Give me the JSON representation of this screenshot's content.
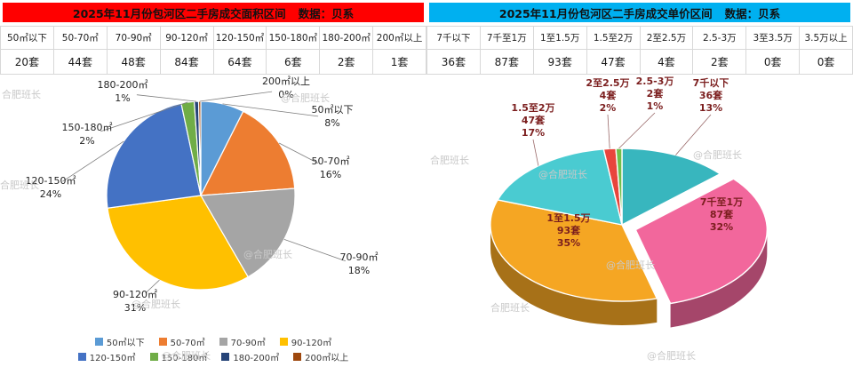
{
  "watermark": {
    "plain": "合肥班长",
    "at": "@合肥班长"
  },
  "panels": {
    "left": {
      "title": "2025年11月份包河区二手房成交面积区间",
      "source": "数据：贝系",
      "header_color": "#FF0000"
    },
    "right": {
      "title": "2025年11月份包河区二手房成交单价区间",
      "source": "数据：贝系",
      "header_color": "#00B0F0"
    }
  },
  "chart_data": [
    {
      "type": "pie",
      "title": "2025年11月份包河区二手房成交面积区间",
      "categories": [
        "50㎡以下",
        "50-70㎡",
        "70-90㎡",
        "90-120㎡",
        "120-150㎡",
        "150-180㎡",
        "180-200㎡",
        "200㎡以上"
      ],
      "values": [
        20,
        44,
        48,
        84,
        64,
        6,
        2,
        1
      ],
      "unit": "套",
      "percent_labels": [
        "8%",
        "16%",
        "18%",
        "31%",
        "24%",
        "2%",
        "1%",
        "0%"
      ],
      "colors": [
        "#5B9BD5",
        "#ED7D31",
        "#A5A5A5",
        "#FFC000",
        "#4472C4",
        "#70AD47",
        "#264478",
        "#9E480E"
      ],
      "legend_position": "bottom"
    },
    {
      "type": "pie",
      "style": "3d",
      "title": "2025年11月份包河区二手房成交单价区间",
      "categories": [
        "7千以下",
        "7千至1万",
        "1至1.5万",
        "1.5至2万",
        "2至2.5万",
        "2.5-3万",
        "3至3.5万",
        "3.5万以上"
      ],
      "values": [
        36,
        87,
        93,
        47,
        4,
        2,
        0,
        0
      ],
      "unit": "套",
      "percent_labels": [
        "13%",
        "32%",
        "35%",
        "17%",
        "2%",
        "1%",
        "",
        ""
      ],
      "colors": [
        "#38B6BE",
        "#F2679C",
        "#F5A623",
        "#4ACBD1",
        "#E8453C",
        "#6FBF4A",
        "#BBBBBB",
        "#BBBBBB"
      ],
      "exploded_index": 1,
      "legend_position": "none"
    }
  ]
}
